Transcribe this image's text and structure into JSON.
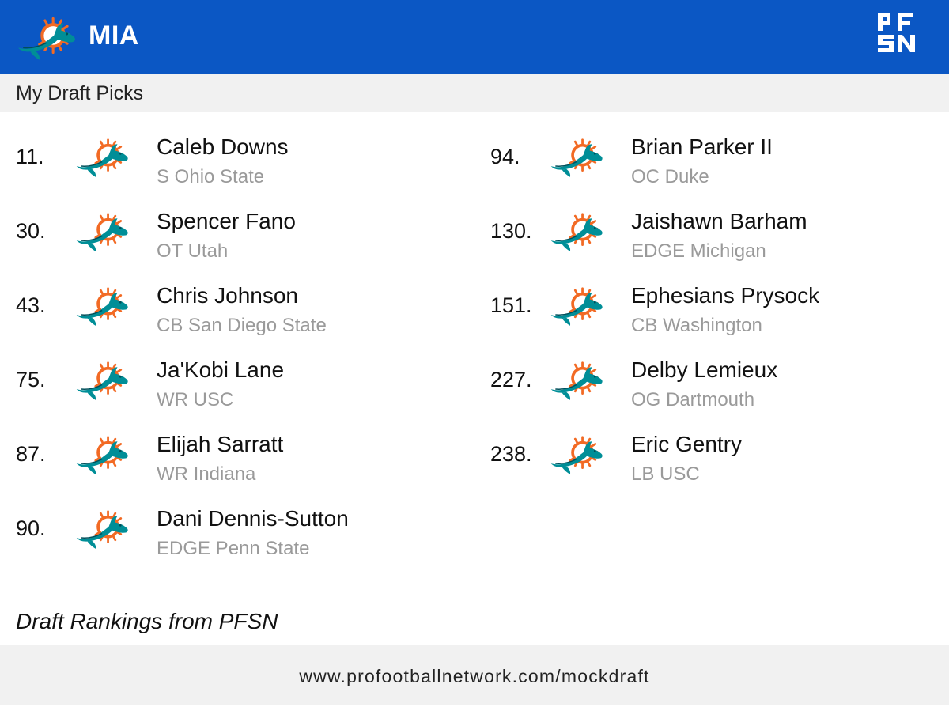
{
  "header": {
    "team_abbr": "MIA",
    "team_logo_icon": "dolphins-logo-icon",
    "brand_logo_icon": "pfsn-logo-icon",
    "background_color": "#0b57c4"
  },
  "subheader": {
    "title": "My Draft Picks"
  },
  "picks_left": [
    {
      "number": "11.",
      "name": "Caleb Downs",
      "info": "S Ohio State"
    },
    {
      "number": "30.",
      "name": "Spencer Fano",
      "info": "OT Utah"
    },
    {
      "number": "43.",
      "name": "Chris Johnson",
      "info": "CB San Diego State"
    },
    {
      "number": "75.",
      "name": "Ja'Kobi Lane",
      "info": "WR USC"
    },
    {
      "number": "87.",
      "name": "Elijah Sarratt",
      "info": "WR Indiana"
    },
    {
      "number": "90.",
      "name": "Dani Dennis-Sutton",
      "info": "EDGE Penn State"
    }
  ],
  "picks_right": [
    {
      "number": "94.",
      "name": "Brian Parker II",
      "info": "OC Duke"
    },
    {
      "number": "130.",
      "name": "Jaishawn Barham",
      "info": "EDGE Michigan"
    },
    {
      "number": "151.",
      "name": "Ephesians Prysock",
      "info": "CB Washington"
    },
    {
      "number": "227.",
      "name": "Delby Lemieux",
      "info": "OG Dartmouth"
    },
    {
      "number": "238.",
      "name": "Eric Gentry",
      "info": "LB USC"
    }
  ],
  "source_note": "Draft Rankings from PFSN",
  "footer": {
    "url": "www.profootballnetwork.com/mockdraft"
  },
  "colors": {
    "aqua": "#008e97",
    "orange": "#f26a24",
    "name_text": "#111111",
    "info_text": "#9a9a9a"
  }
}
